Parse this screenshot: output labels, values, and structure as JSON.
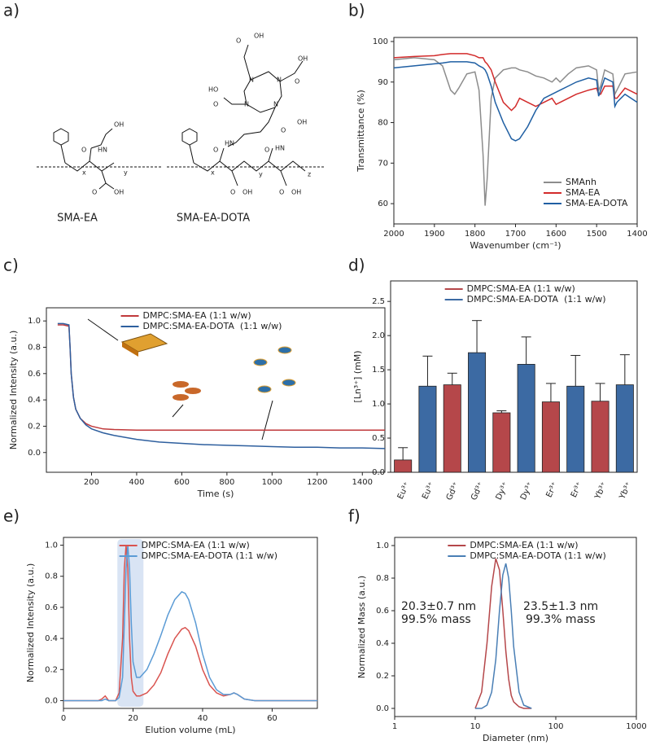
{
  "panel_labels": [
    "a)",
    "b)",
    "c)",
    "d)",
    "e)",
    "f)"
  ],
  "structures": [
    {
      "name": "SMA-EA",
      "color": "#c0504d",
      "atoms": [
        "OH",
        "O",
        "HN",
        "O",
        "OH",
        "x",
        "y"
      ]
    },
    {
      "name": "SMA-EA-DOTA",
      "color": "#4f81bd",
      "atoms": [
        "O",
        "OH",
        "N",
        "N",
        "OH",
        "O",
        "N",
        "N",
        "HO",
        "O",
        "O",
        "HN",
        "O",
        "HN",
        "OH",
        "O",
        "OH",
        "O",
        "OH",
        "O",
        "x",
        "y",
        "z"
      ]
    }
  ],
  "chart_data": [
    {
      "type": "line",
      "xlabel": "Wavenumber (cm⁻¹)",
      "ylabel": "Transmittance (%)",
      "xlim": [
        2000,
        1400
      ],
      "ylim": [
        55,
        101
      ],
      "xticks": [
        2000,
        1900,
        1800,
        1700,
        1600,
        1500,
        1400
      ],
      "yticks": [
        60,
        70,
        80,
        90,
        100
      ],
      "grid": false,
      "legend": "lower right",
      "x": [
        2000,
        1950,
        1900,
        1880,
        1860,
        1850,
        1840,
        1820,
        1800,
        1790,
        1780,
        1775,
        1770,
        1760,
        1750,
        1730,
        1710,
        1700,
        1690,
        1670,
        1650,
        1630,
        1610,
        1600,
        1590,
        1570,
        1550,
        1520,
        1500,
        1495,
        1490,
        1480,
        1460,
        1455,
        1450,
        1430,
        1400
      ],
      "series": [
        {
          "name": "SMAnh",
          "color": "#8c8c8c",
          "values": [
            95.5,
            96,
            95.5,
            94,
            88,
            87,
            88.5,
            92,
            92.5,
            88,
            72,
            59.5,
            66,
            86,
            91,
            93,
            93.5,
            93.5,
            93,
            92.5,
            91.5,
            91,
            90,
            91,
            90,
            92,
            93.5,
            94,
            93,
            88,
            89,
            93,
            92,
            87,
            88,
            92,
            92.5
          ]
        },
        {
          "name": "SMA-EA",
          "color": "#d22b2b",
          "values": [
            96,
            96.3,
            96.5,
            96.8,
            97,
            97,
            97,
            97,
            96.5,
            96,
            96,
            95,
            94.5,
            93,
            90,
            85,
            83,
            84,
            86,
            85,
            84,
            85,
            86,
            84.5,
            85,
            86,
            87,
            88,
            88.5,
            87,
            87,
            89,
            89,
            86,
            86,
            88.5,
            87
          ]
        },
        {
          "name": "SMA-EA-DOTA",
          "color": "#1f5fa3",
          "values": [
            93.5,
            94,
            94.5,
            94.7,
            95,
            95,
            95,
            95,
            94.7,
            94,
            93.5,
            93,
            92,
            89,
            85,
            80,
            76,
            75.5,
            76,
            79,
            83,
            86,
            87,
            87.5,
            88,
            89,
            90,
            91,
            90.5,
            86.5,
            88,
            91,
            90,
            84,
            85,
            87,
            85
          ]
        }
      ]
    },
    {
      "type": "line",
      "xlabel": "Time (s)",
      "ylabel": "Normalized Intensity (a.u.)",
      "xlim": [
        0,
        1500
      ],
      "ylim": [
        -0.15,
        1.1
      ],
      "xticks": [
        200,
        400,
        600,
        800,
        1000,
        1200,
        1400
      ],
      "yticks": [
        {
          "value": 0,
          "label": "0.0"
        },
        0.2,
        0.4,
        0.6,
        0.8,
        {
          "value": 1,
          "label": "1.0"
        }
      ],
      "grid": false,
      "legend": "upper center",
      "x": [
        50,
        75,
        100,
        105,
        110,
        120,
        130,
        150,
        175,
        200,
        250,
        300,
        400,
        500,
        600,
        700,
        800,
        900,
        1000,
        1100,
        1200,
        1300,
        1400,
        1500
      ],
      "series": [
        {
          "name": "DMPC:SMA-EA (1:1 w/w)",
          "color": "#c0393b",
          "values": [
            0.97,
            0.97,
            0.96,
            0.8,
            0.6,
            0.42,
            0.33,
            0.26,
            0.22,
            0.2,
            0.18,
            0.175,
            0.17,
            0.17,
            0.17,
            0.17,
            0.17,
            0.17,
            0.17,
            0.17,
            0.17,
            0.17,
            0.17,
            0.17
          ]
        },
        {
          "name": "DMPC:SMA-EA-DOTA  (1:1 w/w)",
          "color": "#2e5f9e",
          "values": [
            0.98,
            0.98,
            0.97,
            0.8,
            0.6,
            0.42,
            0.33,
            0.26,
            0.21,
            0.18,
            0.15,
            0.13,
            0.1,
            0.08,
            0.07,
            0.06,
            0.055,
            0.05,
            0.045,
            0.04,
            0.04,
            0.035,
            0.035,
            0.03
          ]
        }
      ]
    },
    {
      "type": "bar",
      "ylabel": "[Ln³⁺] (mM)",
      "ylim": [
        0,
        2.8
      ],
      "yticks": [
        {
          "value": 0,
          "label": "0.0"
        },
        0.5,
        {
          "value": 1,
          "label": "1.0"
        },
        1.5,
        {
          "value": 2,
          "label": "2.0"
        },
        2.5
      ],
      "grid": false,
      "legend": "upper center",
      "categories": [
        "Eu³⁺",
        "Eu³⁺",
        "Gd³⁺",
        "Gd³⁺",
        "Dy³⁺",
        "Dy³⁺",
        "Er³⁺",
        "Er³⁺",
        "Yb³⁺",
        "Yb³⁺"
      ],
      "series": [
        {
          "name": "DMPC:SMA-EA (1:1 w/w)",
          "color": "#b5474a",
          "values": [
            0.18,
            null,
            1.28,
            null,
            0.87,
            null,
            1.03,
            null,
            1.04,
            null
          ],
          "errors": [
            0.18,
            null,
            0.17,
            null,
            0.03,
            null,
            0.27,
            null,
            0.26,
            null
          ]
        },
        {
          "name": "DMPC:SMA-EA-DOTA  (1:1 w/w)",
          "color": "#3c6aa3",
          "values": [
            null,
            1.26,
            null,
            1.75,
            null,
            1.58,
            null,
            1.26,
            null,
            1.28
          ],
          "errors": [
            null,
            0.44,
            null,
            0.47,
            null,
            0.4,
            null,
            0.45,
            null,
            0.44
          ]
        }
      ]
    },
    {
      "type": "line",
      "xlabel": "Elution volume (mL)",
      "ylabel": "Normalized Intensity (a.u.)",
      "xlim": [
        0,
        73
      ],
      "ylim": [
        -0.05,
        1.05
      ],
      "xticks": [
        0,
        20,
        40,
        60
      ],
      "yticks": [
        {
          "value": 0,
          "label": "0.0"
        },
        0.2,
        0.4,
        0.6,
        0.8,
        {
          "value": 1,
          "label": "1.0"
        }
      ],
      "grid": false,
      "legend": "upper center",
      "highlight_x": [
        15.5,
        23
      ],
      "x": [
        0,
        10,
        11,
        12,
        13,
        15,
        16,
        17,
        17.5,
        18,
        18.5,
        19,
        19.5,
        20,
        21,
        22,
        24,
        26,
        28,
        30,
        32,
        34,
        35,
        36,
        38,
        40,
        42,
        44,
        46,
        48,
        49,
        50,
        52,
        55,
        60,
        73
      ],
      "series": [
        {
          "name": "DMPC:SMA-EA (1:1 w/w)",
          "color": "#d9534f",
          "values": [
            0,
            0,
            0.01,
            0.03,
            0,
            0,
            0.05,
            0.4,
            0.85,
            1.0,
            0.85,
            0.4,
            0.15,
            0.06,
            0.03,
            0.03,
            0.05,
            0.1,
            0.18,
            0.3,
            0.4,
            0.46,
            0.47,
            0.45,
            0.35,
            0.2,
            0.1,
            0.05,
            0.03,
            0.04,
            0.05,
            0.04,
            0.01,
            0,
            0,
            0
          ]
        },
        {
          "name": "DMPC:SMA-EA-DOTA (1:1 w/w)",
          "color": "#5b9bd5",
          "values": [
            0,
            0,
            0,
            0.01,
            0,
            0,
            0.02,
            0.15,
            0.5,
            0.85,
            1.0,
            0.85,
            0.5,
            0.25,
            0.15,
            0.15,
            0.2,
            0.3,
            0.42,
            0.55,
            0.65,
            0.7,
            0.69,
            0.65,
            0.5,
            0.3,
            0.15,
            0.07,
            0.04,
            0.04,
            0.05,
            0.04,
            0.01,
            0,
            0,
            0
          ]
        }
      ]
    },
    {
      "type": "line",
      "xlabel": "Diameter (nm)",
      "ylabel": "Normalized Mass (a.u.)",
      "xlog": true,
      "xlim": [
        1,
        1000
      ],
      "ylim": [
        -0.05,
        1.05
      ],
      "xticks": [
        1,
        10,
        100,
        1000
      ],
      "yticks": [
        {
          "value": 0,
          "label": "0.0"
        },
        0.2,
        0.4,
        0.6,
        0.8,
        {
          "value": 1,
          "label": "1.0"
        }
      ],
      "grid": false,
      "legend": "upper center",
      "x": [
        10,
        12,
        14,
        16,
        18,
        20,
        22,
        24,
        26,
        28,
        30,
        35,
        40,
        50
      ],
      "series": [
        {
          "name": "DMPC:SMA-EA (1:1 w/w)",
          "color": "#b5474a",
          "values": [
            0,
            0.1,
            0.4,
            0.75,
            0.92,
            0.85,
            0.6,
            0.35,
            0.18,
            0.08,
            0.04,
            0.01,
            0,
            0
          ]
        },
        {
          "name": "DMPC:SMA-EA-DOTA (1:1 w/w)",
          "color": "#4a7fb5",
          "values": [
            0,
            0,
            0.02,
            0.1,
            0.3,
            0.6,
            0.82,
            0.89,
            0.8,
            0.6,
            0.38,
            0.1,
            0.02,
            0
          ]
        }
      ],
      "annotations": [
        {
          "text": "20.3±0.7 nm",
          "color": "#b5474a"
        },
        {
          "text": "99.5% mass",
          "color": "#b5474a"
        },
        {
          "text": "23.5±1.3 nm",
          "color": "#3c6aa3"
        },
        {
          "text": "99.3% mass",
          "color": "#3c6aa3"
        }
      ]
    }
  ]
}
